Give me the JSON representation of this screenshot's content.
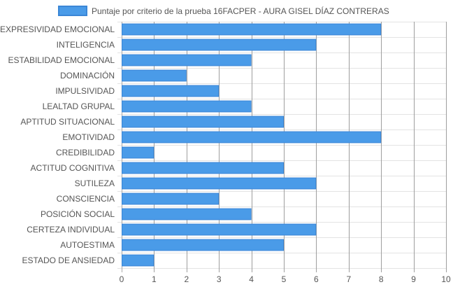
{
  "chart_data": {
    "type": "bar",
    "orientation": "horizontal",
    "categories": [
      "EXPRESIVIDAD EMOCIONAL",
      "INTELIGENCIA",
      "ESTABILIDAD EMOCIONAL",
      "DOMINACIÓN",
      "IMPULSIVIDAD",
      "LEALTAD GRUPAL",
      "APTITUD SITUACIONAL",
      "EMOTIVIDAD",
      "CREDIBILIDAD",
      "ACTITUD COGNITIVA",
      "SUTILEZA",
      "CONSCIENCIA",
      "POSICIÓN SOCIAL",
      "CERTEZA INDIVIDUAL",
      "AUTOESTIMA",
      "ESTADO DE ANSIEDAD"
    ],
    "series": [
      {
        "name": "Puntaje por criterio de la prueba 16FACPER - AURA GISEL DÍAZ CONTRERAS",
        "values": [
          8,
          6,
          4,
          2,
          3,
          4,
          5,
          8,
          1,
          5,
          6,
          3,
          4,
          6,
          5,
          1
        ],
        "color": "#4a9be8",
        "border_color": "#3b86d6"
      }
    ],
    "xlim": [
      0,
      10
    ],
    "x_ticks": [
      "0",
      "1",
      "2",
      "3",
      "4",
      "5",
      "6",
      "7",
      "8",
      "9",
      "10"
    ],
    "grid": true,
    "legend_position": "top"
  }
}
